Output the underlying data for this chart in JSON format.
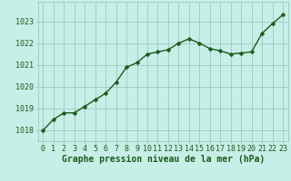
{
  "x": [
    0,
    1,
    2,
    3,
    4,
    5,
    6,
    7,
    8,
    9,
    10,
    11,
    12,
    13,
    14,
    15,
    16,
    17,
    18,
    19,
    20,
    21,
    22,
    23
  ],
  "y": [
    1018.0,
    1018.5,
    1018.8,
    1018.8,
    1019.1,
    1019.4,
    1019.7,
    1020.2,
    1020.9,
    1021.1,
    1021.5,
    1021.6,
    1021.7,
    1022.0,
    1022.2,
    1022.0,
    1021.75,
    1021.65,
    1021.5,
    1021.55,
    1021.6,
    1022.45,
    1022.9,
    1023.3
  ],
  "line_color": "#1a5c1a",
  "marker": "D",
  "markersize": 2.5,
  "linewidth": 1.0,
  "background_color": "#c8eee8",
  "grid_color": "#99ccbb",
  "xlabel": "Graphe pression niveau de la mer (hPa)",
  "xlabel_fontsize": 7.0,
  "xlabel_color": "#1a5c1a",
  "tick_label_color": "#1a5c1a",
  "tick_fontsize": 6.0,
  "ylim": [
    1017.5,
    1023.9
  ],
  "xlim": [
    -0.5,
    23.5
  ],
  "yticks": [
    1018,
    1019,
    1020,
    1021,
    1022,
    1023
  ],
  "xticks": [
    0,
    1,
    2,
    3,
    4,
    5,
    6,
    7,
    8,
    9,
    10,
    11,
    12,
    13,
    14,
    15,
    16,
    17,
    18,
    19,
    20,
    21,
    22,
    23
  ]
}
